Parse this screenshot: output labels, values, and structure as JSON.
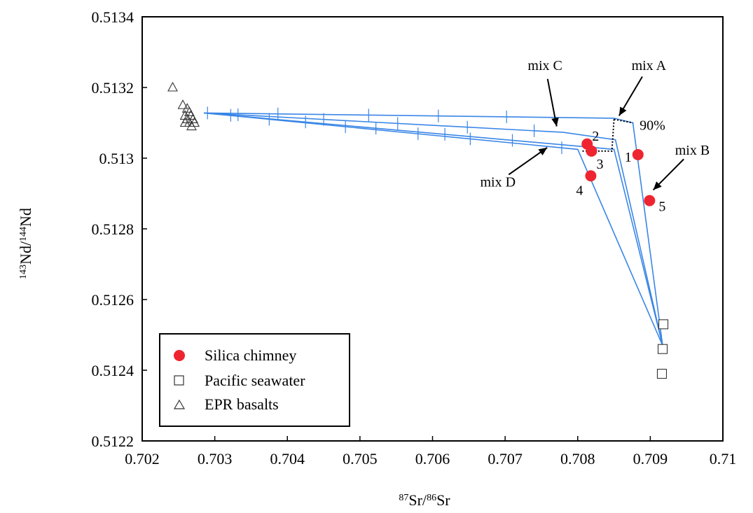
{
  "chart_data": {
    "type": "scatter",
    "title": "",
    "xlabel_parts": {
      "sup1": "87",
      "t1": "Sr/",
      "sup2": "86",
      "t2": "Sr"
    },
    "ylabel_parts": {
      "sup1": "143",
      "t1": "Nd/",
      "sup2": "144",
      "t2": "Nd"
    },
    "xlim": [
      0.702,
      0.71
    ],
    "ylim": [
      0.5122,
      0.5134
    ],
    "x_ticks": [
      0.702,
      0.703,
      0.704,
      0.705,
      0.706,
      0.707,
      0.708,
      0.709,
      0.71
    ],
    "x_tick_labels": [
      "0.702",
      "0.703",
      "0.704",
      "0.705",
      "0.706",
      "0.707",
      "0.708",
      "0.709",
      "0.71"
    ],
    "y_ticks": [
      0.5122,
      0.5124,
      0.5126,
      0.5128,
      0.513,
      0.5132,
      0.5134
    ],
    "y_tick_labels": [
      "0.5122",
      "0.5124",
      "0.5126",
      "0.5128",
      "0.513",
      "0.5132",
      "0.5134"
    ],
    "grid": false,
    "legend_position": "bottom-left",
    "colors": {
      "chimney": "#ee2530",
      "mix_line": "#3a86e6",
      "axis": "#000000"
    },
    "series": [
      {
        "name": "Silica chimney",
        "marker": "filled-circle",
        "points": [
          {
            "x": 0.70883,
            "y": 0.51301,
            "label": "1"
          },
          {
            "x": 0.70813,
            "y": 0.51304,
            "label": "2"
          },
          {
            "x": 0.70819,
            "y": 0.51302,
            "label": "3"
          },
          {
            "x": 0.70818,
            "y": 0.51295,
            "label": "4"
          },
          {
            "x": 0.70899,
            "y": 0.51288,
            "label": "5"
          }
        ]
      },
      {
        "name": "Pacific seawater",
        "marker": "open-square",
        "points": [
          {
            "x": 0.70918,
            "y": 0.51253
          },
          {
            "x": 0.70917,
            "y": 0.51246
          },
          {
            "x": 0.70916,
            "y": 0.51239
          }
        ]
      },
      {
        "name": "EPR basalts",
        "marker": "open-triangle",
        "points": [
          {
            "x": 0.70242,
            "y": 0.5132
          },
          {
            "x": 0.70256,
            "y": 0.51315
          },
          {
            "x": 0.70262,
            "y": 0.51314
          },
          {
            "x": 0.70265,
            "y": 0.51313
          },
          {
            "x": 0.70259,
            "y": 0.51312
          },
          {
            "x": 0.70267,
            "y": 0.51312
          },
          {
            "x": 0.70262,
            "y": 0.51311
          },
          {
            "x": 0.7027,
            "y": 0.51311
          },
          {
            "x": 0.70259,
            "y": 0.5131
          },
          {
            "x": 0.70265,
            "y": 0.5131
          },
          {
            "x": 0.70272,
            "y": 0.5131
          },
          {
            "x": 0.70268,
            "y": 0.51309
          }
        ]
      }
    ],
    "mixing_lines": [
      {
        "name": "mix A",
        "points": [
          [
            0.70285,
            0.513128
          ],
          [
            0.7085,
            0.513113
          ],
          [
            0.70876,
            0.5131
          ],
          [
            0.70917,
            0.51247
          ]
        ]
      },
      {
        "name": "mix B",
        "points": [
          [
            0.70285,
            0.513128
          ],
          [
            0.7085,
            0.513025
          ],
          [
            0.70917,
            0.51247
          ]
        ]
      },
      {
        "name": "mix C",
        "points": [
          [
            0.70285,
            0.513128
          ],
          [
            0.7078,
            0.513073
          ],
          [
            0.70852,
            0.513052
          ],
          [
            0.70917,
            0.51247
          ]
        ]
      },
      {
        "name": "mix D",
        "points": [
          [
            0.70285,
            0.513128
          ],
          [
            0.708,
            0.513025
          ],
          [
            0.70917,
            0.51247
          ]
        ]
      }
    ],
    "mix_tick_x": [
      0.7029,
      0.70322,
      0.70332,
      0.70375,
      0.70387,
      0.70425,
      0.7045,
      0.7048,
      0.70512,
      0.70522,
      0.70552,
      0.7058,
      0.70608,
      0.70617,
      0.70648,
      0.70652,
      0.70702,
      0.7071,
      0.7074,
      0.70778
    ],
    "dotted_lines": [
      [
        [
          0.7085,
          0.51311
        ],
        [
          0.70876,
          0.5131
        ]
      ],
      [
        [
          0.7085,
          0.51311
        ],
        [
          0.70847,
          0.51302
        ],
        [
          0.70805,
          0.51302
        ]
      ]
    ],
    "annotations": [
      {
        "text": "mix A",
        "x": 0.70898,
        "y": 0.51325,
        "arrow_to": [
          0.70857,
          0.51312
        ]
      },
      {
        "text": "mix B",
        "x": 0.70958,
        "y": 0.51301,
        "arrow_to": [
          0.70904,
          0.51291
        ]
      },
      {
        "text": "mix C",
        "x": 0.70755,
        "y": 0.51325,
        "arrow_to": [
          0.70771,
          0.51309
        ]
      },
      {
        "text": "mix D",
        "x": 0.7069,
        "y": 0.51292,
        "arrow_to": [
          0.70758,
          0.51303
        ]
      },
      {
        "text": "90%",
        "x": 0.70903,
        "y": 0.51308
      }
    ]
  }
}
